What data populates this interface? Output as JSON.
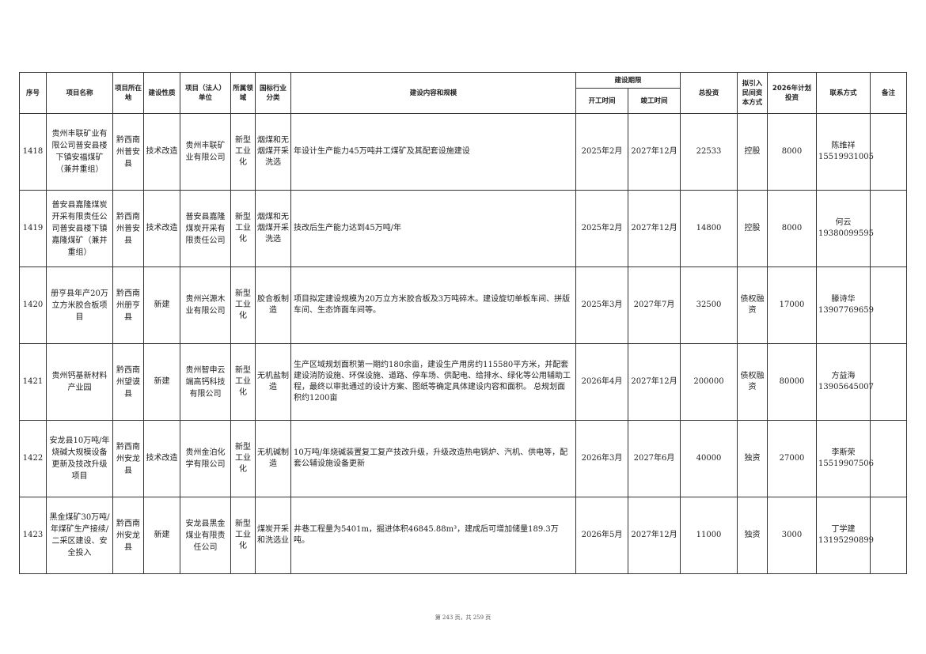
{
  "headers": {
    "seq": "序号",
    "name": "项目名称",
    "location": "项目所在地",
    "nature": "建设性质",
    "unit": "项目（法人）单位",
    "field": "所属领域",
    "industry": "国标行业分类",
    "content": "建设内容和规模",
    "period": "建设期限",
    "start": "开工时间",
    "end": "竣工时间",
    "total": "总投资",
    "capital_mode": "拟引入民间资本方式",
    "plan_2026": "2026年计划投资",
    "contact": "联系方式",
    "remark": "备注"
  },
  "rows": [
    {
      "seq": "1418",
      "name": "贵州丰联矿业有限公司普安县楼下镇安福煤矿（兼并重组）",
      "location": "黔西南州普安县",
      "nature": "技术改造",
      "unit": "贵州丰联矿业有限公司",
      "field": "新型工业化",
      "industry": "烟煤和无烟煤开采洗选",
      "content": "年设计生产能力45万吨井工煤矿及其配套设施建设",
      "start": "2025年2月",
      "end": "2027年12月",
      "total": "22533",
      "capital_mode": "控股",
      "plan_2026": "8000",
      "contact_name": "陈维祥",
      "contact_phone": "15519931005",
      "remark": ""
    },
    {
      "seq": "1419",
      "name": "普安县嘉隆煤炭开采有限责任公司普安县楼下镇嘉隆煤矿（兼并重组）",
      "location": "黔西南州普安县",
      "nature": "技术改造",
      "unit": "普安县嘉隆煤炭开采有限责任公司",
      "field": "新型工业化",
      "industry": "烟煤和无烟煤开采洗选",
      "content": "技改后生产能力达到45万吨/年",
      "start": "2025年2月",
      "end": "2027年12月",
      "total": "14800",
      "capital_mode": "控股",
      "plan_2026": "8000",
      "contact_name": "何云",
      "contact_phone": "19380099595",
      "remark": ""
    },
    {
      "seq": "1420",
      "name": "册亨县年产20万立方米胶合板项目",
      "location": "黔西南州册亨县",
      "nature": "新建",
      "unit": "贵州兴源木业有限公司",
      "field": "新型工业化",
      "industry": "胶合板制造",
      "content": "项目拟定建设规模为20万立方米胶合板及3万吨碎木。建设旋切单板车间、拼版车间、生态饰面车间等。",
      "start": "2025年3月",
      "end": "2027年7月",
      "total": "32500",
      "capital_mode": "债权融资",
      "plan_2026": "17000",
      "contact_name": "滕诗华",
      "contact_phone": "13907769659",
      "remark": ""
    },
    {
      "seq": "1421",
      "name": "贵州钙基新材料产业园",
      "location": "黔西南州望谟县",
      "nature": "新建",
      "unit": "贵州智申云端高钙科技有限公司",
      "field": "新型工业化",
      "industry": "无机盐制造",
      "content": "生产区域规划面积第一期约180余亩，建设生产用房约115580平方米，并配套建设消防设施、环保设施、道路、停车场、供配电、给排水、绿化等公用辅助工程，最终以审批通过的设计方案、图纸等确定具体建设内容和面积。 总规划面积约1200亩",
      "start": "2026年4月",
      "end": "2027年12月",
      "total": "200000",
      "capital_mode": "债权融资",
      "plan_2026": "80000",
      "contact_name": "方益海",
      "contact_phone": "13905645007",
      "remark": ""
    },
    {
      "seq": "1422",
      "name": "安龙县10万吨/年烧碱大规模设备更新及技改升级项目",
      "location": "黔西南州安龙县",
      "nature": "技术改造",
      "unit": "贵州金泊化学有限公司",
      "field": "新型工业化",
      "industry": "无机碱制造",
      "content": "10万吨/年烧碱装置复工复产技改升级，升级改造热电锅炉、汽机、供电等，配套公辅设施设备更新",
      "start": "2026年3月",
      "end": "2027年6月",
      "total": "40000",
      "capital_mode": "独资",
      "plan_2026": "27000",
      "contact_name": "李斯荣",
      "contact_phone": "15519907506",
      "remark": ""
    },
    {
      "seq": "1423",
      "name": "黑金煤矿30万吨/年煤矿生产接续/二采区建设、安全投入",
      "location": "黔西南州安龙县",
      "nature": "新建",
      "unit": "安龙县黑金煤业有限责任公司",
      "field": "新型工业化",
      "industry": "煤炭开采和洗选业",
      "content": "井巷工程量为5401m，掘进体积46845.88m³，建成后可增加储量189.3万吨。",
      "start": "2026年5月",
      "end": "2027年12月",
      "total": "11000",
      "capital_mode": "独资",
      "plan_2026": "3000",
      "contact_name": "丁学建",
      "contact_phone": "13195290899",
      "remark": ""
    }
  ],
  "footer": "第 243 页，共 259 页"
}
